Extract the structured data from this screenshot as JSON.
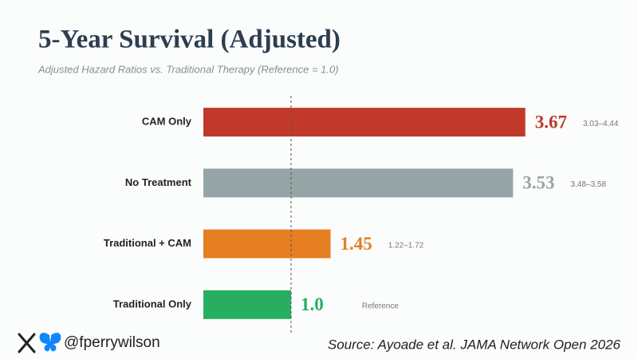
{
  "chart_data": {
    "type": "bar",
    "orientation": "horizontal",
    "title": "5-Year Survival (Adjusted)",
    "subtitle": "Adjusted Hazard Ratios vs. Traditional Therapy (Reference = 1.0)",
    "categories": [
      "CAM Only",
      "No Treatment",
      "Traditional + CAM",
      "Traditional Only"
    ],
    "values": [
      3.67,
      3.53,
      1.45,
      1
    ],
    "value_labels": [
      "3.67",
      "3.53",
      "1.45",
      "1.0"
    ],
    "intervals": [
      "3.03–4.44",
      "3.48–3.58",
      "1.22–1.72",
      "Reference"
    ],
    "colors": [
      "#c0392b",
      "#95a5a6",
      "#e67e22",
      "#27ae60"
    ],
    "xlim": [
      0,
      4
    ],
    "reference_line": 1,
    "credit": "@fperrywilson",
    "source": "Source: Ayoade et al. JAMA Network Open 2026"
  }
}
